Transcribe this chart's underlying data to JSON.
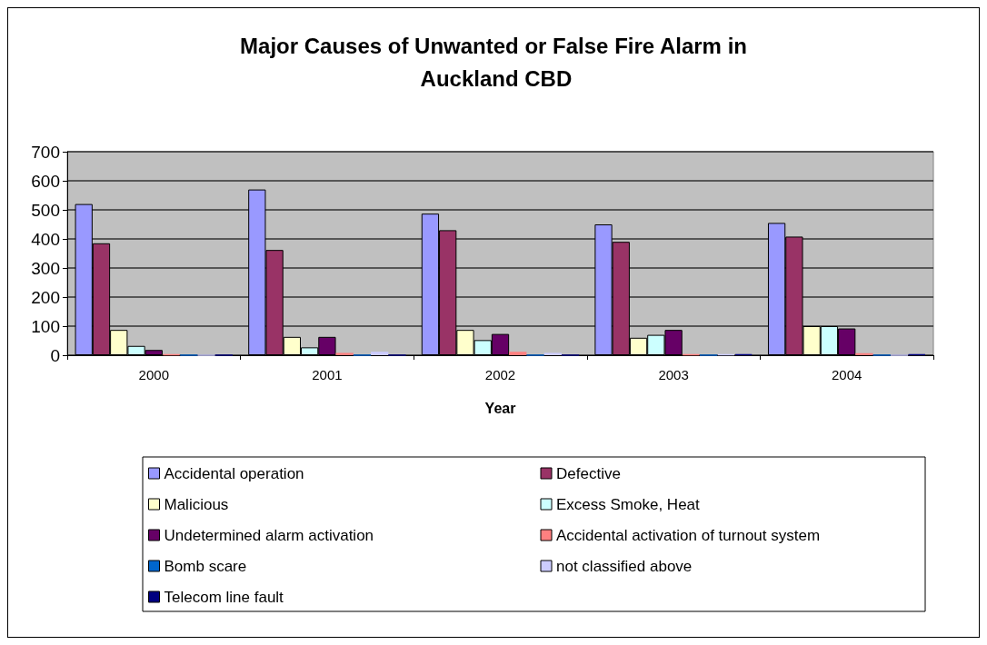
{
  "chart_data": {
    "type": "bar",
    "title": "Major Causes of Unwanted or False Fire Alarm in Auckland CBD",
    "xlabel": "Year",
    "categories": [
      "2000",
      "2001",
      "2002",
      "2003",
      "2004"
    ],
    "ylim": [
      0,
      700
    ],
    "yticks": [
      0,
      100,
      200,
      300,
      400,
      500,
      600,
      700
    ],
    "grid": "y",
    "legend": "bottom",
    "series": [
      {
        "name": "Accidental operation",
        "color": "#9999ff",
        "values": [
          520,
          570,
          487,
          450,
          455
        ]
      },
      {
        "name": "Defective",
        "color": "#993366",
        "values": [
          385,
          362,
          430,
          390,
          408
        ]
      },
      {
        "name": "Malicious",
        "color": "#ffffcc",
        "values": [
          87,
          63,
          87,
          60,
          100
        ]
      },
      {
        "name": "Excess Smoke, Heat",
        "color": "#ccffff",
        "values": [
          32,
          27,
          52,
          70,
          100
        ]
      },
      {
        "name": "Undetermined alarm activation",
        "color": "#660066",
        "values": [
          18,
          63,
          73,
          87,
          92
        ]
      },
      {
        "name": "Accidental activation of turnout system",
        "color": "#ff8080",
        "values": [
          3,
          8,
          12,
          3,
          7
        ]
      },
      {
        "name": "Bomb scare",
        "color": "#0066cc",
        "values": [
          0,
          0,
          0,
          0,
          0
        ]
      },
      {
        "name": "not classified above",
        "color": "#ccccff",
        "values": [
          0,
          12,
          8,
          3,
          0
        ]
      },
      {
        "name": "Telecom line fault",
        "color": "#000080",
        "values": [
          0,
          0,
          0,
          3,
          3
        ]
      }
    ]
  }
}
